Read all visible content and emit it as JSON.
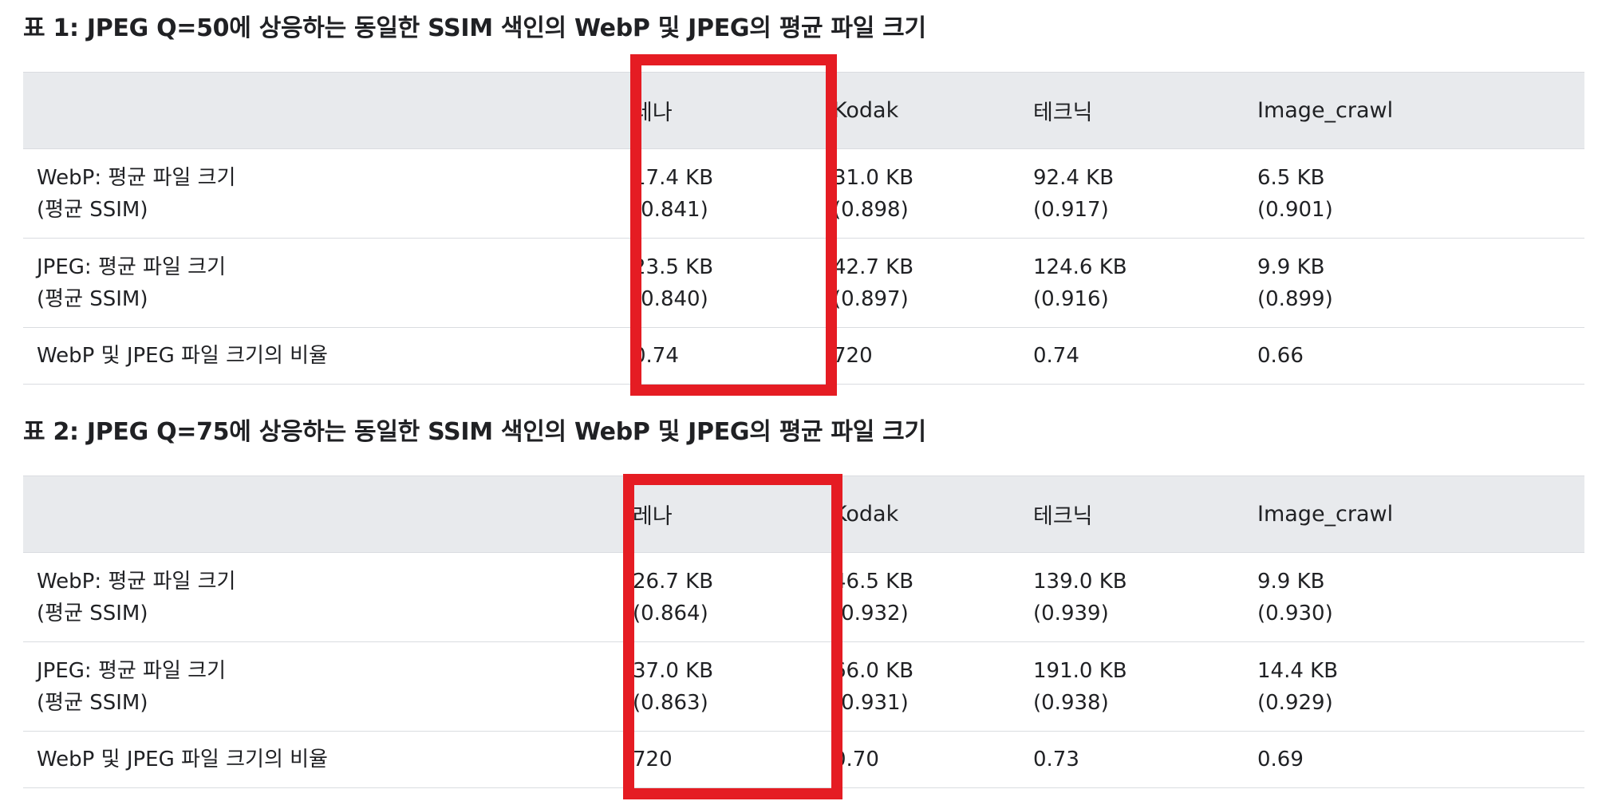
{
  "tables": [
    {
      "caption": "표 1: JPEG Q=50에 상응하는 동일한 SSIM 색인의 WebP 및 JPEG의 평균 파일 크기",
      "headers": [
        "",
        "레나",
        "Kodak",
        "테크닉",
        "Image_crawl"
      ],
      "rows": [
        {
          "label": [
            "WebP: 평균 파일 크기",
            "(평균 SSIM)"
          ],
          "cells": [
            [
              "17.4 KB",
              "(0.841)"
            ],
            [
              "31.0 KB",
              "(0.898)"
            ],
            [
              "92.4 KB",
              "(0.917)"
            ],
            [
              "6.5 KB",
              "(0.901)"
            ]
          ]
        },
        {
          "label": [
            "JPEG: 평균 파일 크기",
            "(평균 SSIM)"
          ],
          "cells": [
            [
              "23.5 KB",
              "(0.840)"
            ],
            [
              "42.7 KB",
              "(0.897)"
            ],
            [
              "124.6 KB",
              "(0.916)"
            ],
            [
              "9.9 KB",
              "(0.899)"
            ]
          ]
        },
        {
          "label": [
            "WebP 및 JPEG 파일 크기의 비율"
          ],
          "cells": [
            [
              "0.74"
            ],
            [
              "720"
            ],
            [
              "0.74"
            ],
            [
              "0.66"
            ]
          ]
        }
      ]
    },
    {
      "caption": "표 2: JPEG Q=75에 상응하는 동일한 SSIM 색인의 WebP 및 JPEG의 평균 파일 크기",
      "headers": [
        "",
        "레나",
        "Kodak",
        "테크닉",
        "Image_crawl"
      ],
      "rows": [
        {
          "label": [
            "WebP: 평균 파일 크기",
            "(평균 SSIM)"
          ],
          "cells": [
            [
              "26.7 KB",
              "(0.864)"
            ],
            [
              "46.5 KB",
              "(0.932)"
            ],
            [
              "139.0 KB",
              "(0.939)"
            ],
            [
              "9.9 KB",
              "(0.930)"
            ]
          ]
        },
        {
          "label": [
            "JPEG: 평균 파일 크기",
            "(평균 SSIM)"
          ],
          "cells": [
            [
              "37.0 KB",
              "(0.863)"
            ],
            [
              "66.0 KB",
              "(0.931)"
            ],
            [
              "191.0 KB",
              "(0.938)"
            ],
            [
              "14.4 KB",
              "(0.929)"
            ]
          ]
        },
        {
          "label": [
            "WebP 및 JPEG 파일 크기의 비율"
          ],
          "cells": [
            [
              "720"
            ],
            [
              "0.70"
            ],
            [
              "0.73"
            ],
            [
              "0.69"
            ]
          ]
        }
      ]
    }
  ],
  "highlight_color": "#e51c23"
}
